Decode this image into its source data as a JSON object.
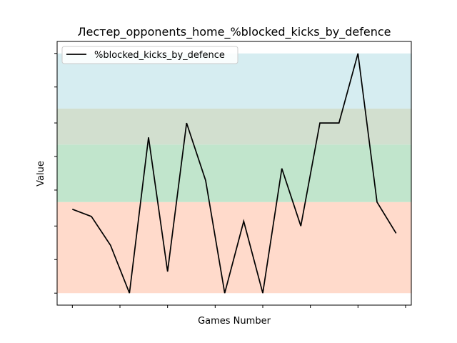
{
  "chart_data": {
    "type": "line",
    "title": "Лестер_opponents_home_%blocked_kicks_by_defence",
    "xlabel": "Games Number",
    "ylabel": "Value",
    "x": [
      0,
      1,
      2,
      3,
      4,
      5,
      6,
      7,
      8,
      9,
      10,
      11,
      12,
      13,
      14,
      15,
      16,
      17
    ],
    "series": [
      {
        "name": "%blocked_kicks_by_defence",
        "color": "#000000",
        "values": [
          0.35,
          0.32,
          0.2,
          0.0,
          0.65,
          0.09,
          0.71,
          0.47,
          0.0,
          0.3,
          0.0,
          0.52,
          0.28,
          0.71,
          0.71,
          1.0,
          0.38,
          0.25
        ]
      }
    ],
    "xlim": [
      -0.8,
      17.8
    ],
    "ylim": [
      -0.05,
      1.05
    ],
    "bands": [
      {
        "from": 0.0,
        "to": 0.38,
        "color": "#ffdacb"
      },
      {
        "from": 0.38,
        "to": 0.62,
        "color": "#c1e5cc"
      },
      {
        "from": 0.62,
        "to": 0.77,
        "color": "#d2dfcf"
      },
      {
        "from": 0.77,
        "to": 1.0,
        "color": "#d6edf1"
      }
    ],
    "x_ticks": [
      0,
      2.5,
      5,
      7.5,
      10,
      12.5,
      15,
      17.5
    ],
    "y_ticks": [
      0.0,
      0.14,
      0.28,
      0.43,
      0.57,
      0.71,
      0.86,
      1.0
    ],
    "legend": "top-left",
    "grid": false
  }
}
